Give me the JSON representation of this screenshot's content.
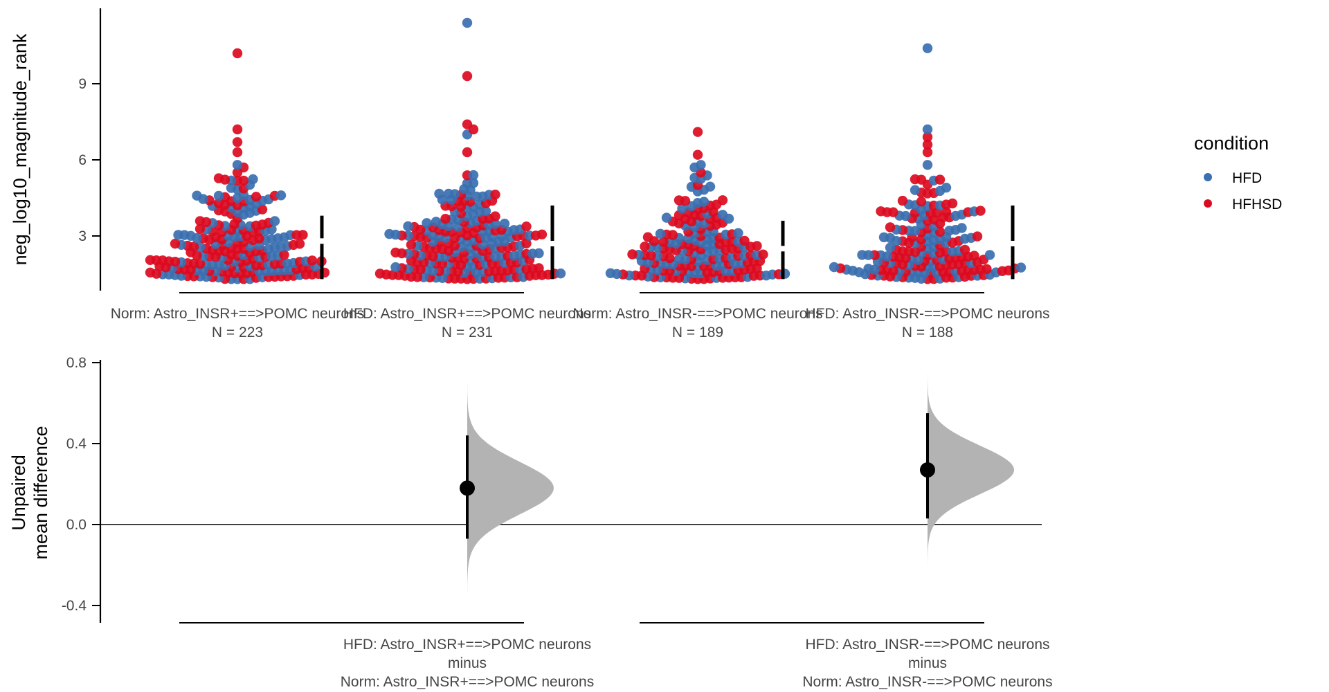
{
  "chart_data": [
    {
      "type": "scatter",
      "subtype": "swarm",
      "title": "",
      "ylabel": "neg_log10_magnitude_rank",
      "xlabel": "",
      "ylim": [
        1.0,
        11.6
      ],
      "yticks": [
        3,
        6,
        9
      ],
      "ytick_labels": [
        "3",
        "6",
        "9"
      ],
      "grid": false,
      "legend": {
        "title": "condition",
        "placement": "right",
        "entries": [
          {
            "name": "HFD",
            "color": "#3a6fb0"
          },
          {
            "name": "HFHSD",
            "color": "#dc0a20"
          }
        ]
      },
      "groups": [
        {
          "label": "Norm: Astro_INSR+==>POMC neurons",
          "n_label": "N = 223",
          "n": 223,
          "min": 1.3,
          "max": 10.2,
          "median": 2.4,
          "q1": 1.7,
          "q3": 3.2,
          "outliers": [
            {
              "y": 10.2,
              "c": "HFHSD"
            },
            {
              "y": 7.2,
              "c": "HFHSD"
            },
            {
              "y": 6.7,
              "c": "HFHSD"
            },
            {
              "y": 6.3,
              "c": "HFHSD"
            },
            {
              "y": 5.8,
              "c": "HFD"
            },
            {
              "y": 5.7,
              "c": "HFHSD"
            },
            {
              "y": 5.5,
              "c": "HFHSD"
            }
          ]
        },
        {
          "label": "HFD: Astro_INSR+==>POMC neurons",
          "n_label": "N = 231",
          "n": 231,
          "min": 1.3,
          "max": 11.4,
          "median": 2.7,
          "q1": 1.8,
          "q3": 3.9,
          "outliers": [
            {
              "y": 11.4,
              "c": "HFD"
            },
            {
              "y": 9.3,
              "c": "HFHSD"
            },
            {
              "y": 7.4,
              "c": "HFHSD"
            },
            {
              "y": 7.2,
              "c": "HFHSD"
            },
            {
              "y": 7.0,
              "c": "HFD"
            },
            {
              "y": 6.3,
              "c": "HFHSD"
            }
          ]
        },
        {
          "label": "Norm: Astro_INSR-==>POMC neurons",
          "n_label": "N = 189",
          "n": 189,
          "min": 1.3,
          "max": 7.1,
          "median": 2.4,
          "q1": 1.8,
          "q3": 3.4,
          "outliers": [
            {
              "y": 7.1,
              "c": "HFHSD"
            },
            {
              "y": 6.2,
              "c": "HFHSD"
            },
            {
              "y": 5.8,
              "c": "HFD"
            },
            {
              "y": 5.7,
              "c": "HFD"
            },
            {
              "y": 5.5,
              "c": "HFHSD"
            }
          ]
        },
        {
          "label": "HFD: Astro_INSR-==>POMC neurons",
          "n_label": "N = 188",
          "n": 188,
          "min": 1.3,
          "max": 10.4,
          "median": 2.6,
          "q1": 1.8,
          "q3": 3.8,
          "outliers": [
            {
              "y": 10.4,
              "c": "HFD"
            },
            {
              "y": 7.2,
              "c": "HFD"
            },
            {
              "y": 6.9,
              "c": "HFHSD"
            },
            {
              "y": 6.6,
              "c": "HFHSD"
            },
            {
              "y": 6.3,
              "c": "HFHSD"
            },
            {
              "y": 5.8,
              "c": "HFD"
            }
          ]
        }
      ],
      "group_summary_bars": [
        {
          "group": 1,
          "low": 1.3,
          "gap": 2.8,
          "high": 3.8
        },
        {
          "group": 2,
          "low": 1.3,
          "gap": 2.7,
          "high": 4.2
        },
        {
          "group": 3,
          "low": 1.3,
          "gap": 2.5,
          "high": 3.6
        },
        {
          "group": 4,
          "low": 1.3,
          "gap": 2.7,
          "high": 4.2
        }
      ]
    },
    {
      "type": "scatter",
      "subtype": "estimation-delta",
      "ylabel": "Unpaired\nmean difference",
      "ylabel_lines": [
        "Unpaired",
        "mean difference"
      ],
      "ylim": [
        -0.42,
        0.8
      ],
      "yticks": [
        0.8,
        0.4,
        0.0,
        -0.4
      ],
      "ytick_labels": [
        "0.8",
        "0.4",
        "0.0",
        "-0.4"
      ],
      "zero_line": 0.0,
      "comparisons": [
        {
          "label_lines": [
            "HFD: Astro_INSR+==>POMC neurons",
            "minus",
            "Norm: Astro_INSR+==>POMC neurons"
          ],
          "mean_diff": 0.18,
          "ci_low": -0.07,
          "ci_high": 0.44,
          "dist_min": -0.4,
          "dist_max": 0.77,
          "dist_sd": 0.13
        },
        {
          "label_lines": [
            "HFD: Astro_INSR-==>POMC neurons",
            "minus",
            "Norm: Astro_INSR-==>POMC neurons"
          ],
          "mean_diff": 0.27,
          "ci_low": 0.03,
          "ci_high": 0.55,
          "dist_min": -0.2,
          "dist_max": 0.79,
          "dist_sd": 0.12
        }
      ],
      "colors": {
        "distribution": "#b3b3b3",
        "estimate": "#000000"
      }
    }
  ]
}
